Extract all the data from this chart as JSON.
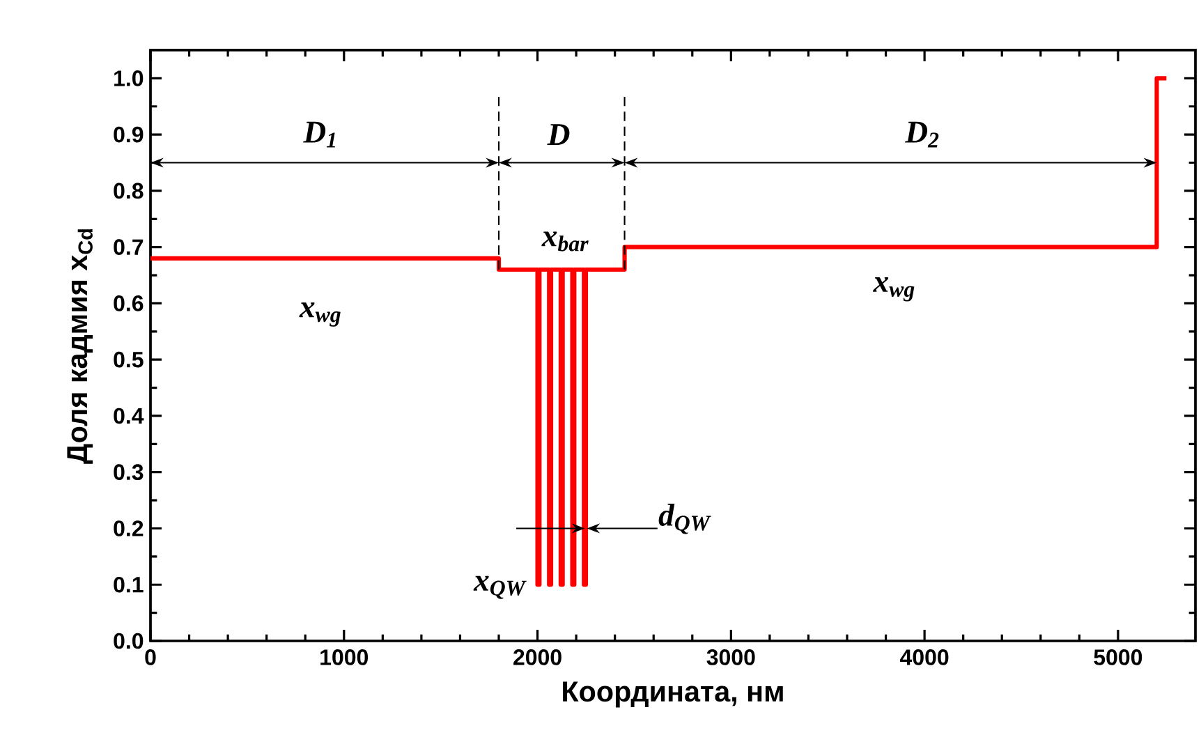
{
  "chart_data": {
    "type": "line",
    "xlabel": "Координата, нм",
    "ylabel": "Доля кадмия x$_{Cd}$",
    "series": [
      {
        "color": "#ff0000",
        "x": [
          0,
          1800,
          1800,
          2000,
          2000,
          2010,
          2010,
          2060,
          2060,
          2070,
          2070,
          2120,
          2120,
          2130,
          2130,
          2180,
          2180,
          2190,
          2190,
          2240,
          2240,
          2250,
          2250,
          2450,
          2450,
          5200,
          5200,
          5250
        ],
        "values": [
          0.68,
          0.68,
          0.66,
          0.66,
          0.1,
          0.1,
          0.66,
          0.66,
          0.1,
          0.1,
          0.66,
          0.66,
          0.1,
          0.1,
          0.66,
          0.66,
          0.1,
          0.1,
          0.66,
          0.66,
          0.1,
          0.1,
          0.66,
          0.66,
          0.7,
          0.7,
          1.0,
          1.0
        ]
      }
    ],
    "xlim": [
      0,
      5400
    ],
    "ylim": [
      0,
      1.05
    ],
    "xticks": [
      0,
      1000,
      2000,
      3000,
      4000,
      5000
    ],
    "yticks": [
      {
        "value": 0,
        "label": "0.0"
      },
      0.1,
      0.2,
      0.3,
      0.4,
      0.5,
      0.6,
      0.7,
      0.8,
      0.9,
      {
        "value": 1.0,
        "label": "1.0"
      }
    ],
    "annotations": [
      "D$_{1}$",
      "D",
      "D$_{2}$",
      "x$_{bar}$",
      "x$_{wg}$",
      "x$_{wg}$",
      "x$_{QW}$",
      "d$_{QW}$"
    ]
  }
}
